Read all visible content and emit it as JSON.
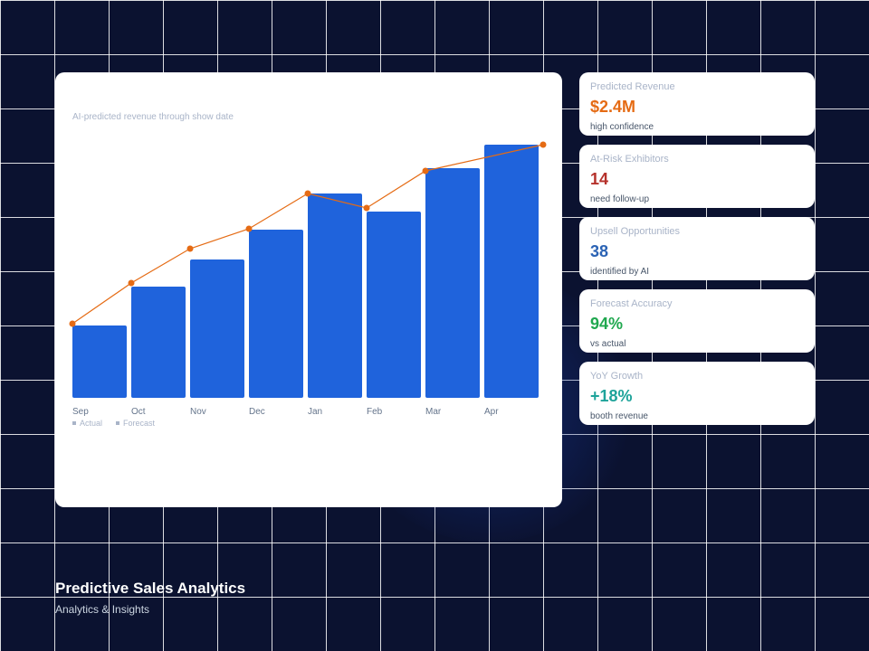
{
  "chart_data": {
    "type": "bar",
    "title": "",
    "subtitle": "AI-predicted revenue through show date",
    "categories": [
      "Sep",
      "Oct",
      "Nov",
      "Dec",
      "Jan",
      "Feb",
      "Mar",
      "Apr"
    ],
    "series": [
      {
        "name": "Actual",
        "type": "bar",
        "color": "#1f63dc",
        "values": [
          80,
          123,
          153,
          186,
          226,
          206,
          254,
          280
        ]
      },
      {
        "name": "Forecast",
        "type": "line",
        "color": "#e56b14",
        "values": [
          82,
          127,
          165,
          187,
          226,
          210,
          251,
          280
        ]
      }
    ],
    "ylim": [
      0,
      300
    ],
    "grid": false,
    "legend": "bottom-left",
    "xlabel": "",
    "ylabel": ""
  },
  "kpis": [
    {
      "label": "Predicted Revenue",
      "value": "$2.4M",
      "sub": "high confidence",
      "color": "#e56b14"
    },
    {
      "label": "At-Risk Exhibitors",
      "value": "14",
      "sub": "need follow-up",
      "color": "#b5312b"
    },
    {
      "label": "Upsell Opportunities",
      "value": "38",
      "sub": "identified by AI",
      "color": "#2b63b4"
    },
    {
      "label": "Forecast Accuracy",
      "value": "94%",
      "sub": "vs actual",
      "color": "#20a84f"
    },
    {
      "label": "YoY Growth",
      "value": "+18%",
      "sub": "booth revenue",
      "color": "#1ea39a"
    }
  ],
  "footer": {
    "title": "Predictive Sales Analytics",
    "subtitle": "Analytics & Insights"
  }
}
